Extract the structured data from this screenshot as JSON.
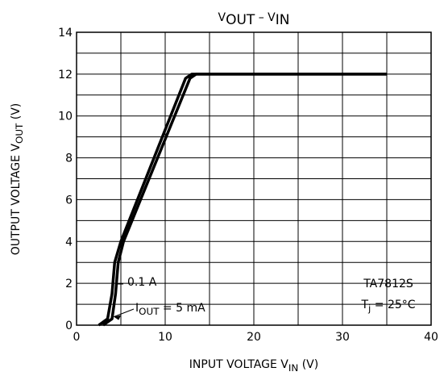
{
  "chart_data": {
    "type": "line",
    "title": [
      {
        "text": "V"
      },
      {
        "text": "OUT",
        "sub": true
      },
      {
        "text": " – V"
      },
      {
        "text": "IN",
        "sub": true
      }
    ],
    "x_label": [
      {
        "text": "INPUT VOLTAGE   V"
      },
      {
        "text": "IN",
        "sub": true
      },
      {
        "text": "   (V)"
      }
    ],
    "y_label": [
      {
        "text": "OUTPUT VOLTAGE   V"
      },
      {
        "text": "OUT",
        "sub": true
      },
      {
        "text": "   (V)"
      }
    ],
    "xlim": [
      0,
      40
    ],
    "xticks": [
      0,
      10,
      20,
      30,
      40
    ],
    "x_minor_ticks": [
      5,
      15,
      25,
      35
    ],
    "ylim": [
      0,
      14
    ],
    "yticks": [
      0,
      2,
      4,
      6,
      8,
      10,
      12,
      14
    ],
    "y_minor_ticks": [
      1,
      3,
      5,
      7,
      9,
      11,
      13
    ],
    "grid": true,
    "series": [
      {
        "name": "0.1 A",
        "color": "#000000",
        "x": [
          3,
          4,
          4.4,
          4.7,
          5.3,
          12.8,
          13.5,
          35
        ],
        "values": [
          0,
          0.3,
          1.5,
          3,
          4,
          11.8,
          12,
          12
        ]
      },
      {
        "color": "#000000",
        "x": [
          2.5,
          3.5,
          4,
          4.3,
          5,
          12.3,
          13,
          35
        ],
        "values": [
          0,
          0.3,
          1.5,
          3,
          4,
          11.8,
          12,
          12
        ]
      }
    ],
    "annotations": {
      "current_label": [
        {
          "text": "I"
        },
        {
          "text": "OUT",
          "sub": true
        },
        {
          "text": " = 5 mA"
        }
      ],
      "device": "TA7812S",
      "temperature": [
        {
          "text": "T"
        },
        {
          "text": "j",
          "sub": true
        },
        {
          "text": " = 25°C"
        }
      ]
    }
  }
}
